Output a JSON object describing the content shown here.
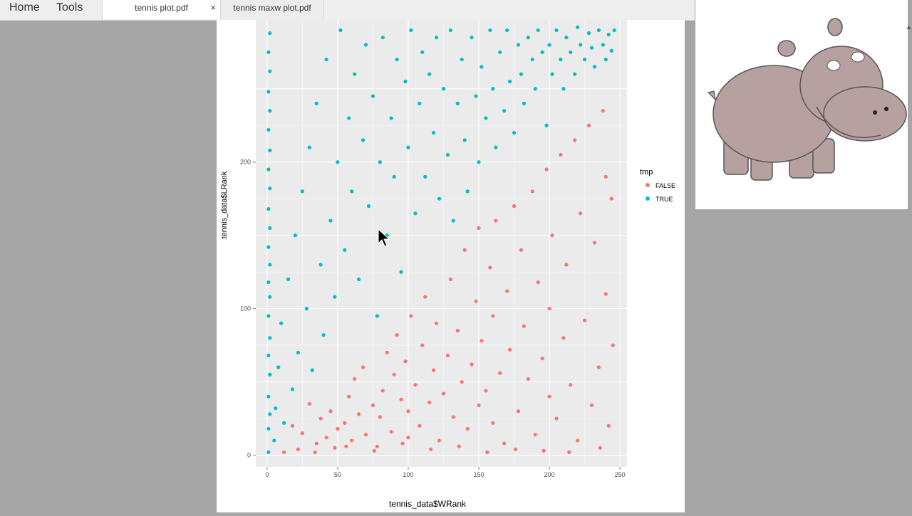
{
  "menu": {
    "home": "Home",
    "tools": "Tools"
  },
  "tabs": [
    {
      "label": "tennis plot.pdf",
      "active": true,
      "close": "×"
    },
    {
      "label": "tennis maxw plot.pdf",
      "active": false
    }
  ],
  "icons": [
    "close-icon",
    "mouse-cursor-icon",
    "hippo-illustration",
    "scroll-up-arrow-icon"
  ],
  "colors": {
    "false": "#F8766D",
    "true": "#00BFC4",
    "panel": "#EBEBEB"
  },
  "chart_data": {
    "type": "scatter",
    "xlabel": "tennis_data$WRank",
    "ylabel": "tennis_data$LRank",
    "xlim": [
      -8,
      255
    ],
    "ylim": [
      -8,
      297
    ],
    "xticks": [
      "0",
      "50",
      "100",
      "150",
      "200",
      "250"
    ],
    "yticks": [
      "0",
      "100",
      "200"
    ],
    "grid": true,
    "legend": {
      "title": "tmp",
      "position": "right",
      "entries": [
        "FALSE",
        "TRUE"
      ]
    },
    "series": [
      {
        "name": "FALSE",
        "color": "#F8766D",
        "points": [
          [
            12,
            2
          ],
          [
            18,
            20
          ],
          [
            22,
            4
          ],
          [
            25,
            15
          ],
          [
            30,
            35
          ],
          [
            35,
            8
          ],
          [
            38,
            25
          ],
          [
            42,
            12
          ],
          [
            45,
            30
          ],
          [
            48,
            5
          ],
          [
            50,
            18
          ],
          [
            55,
            22
          ],
          [
            58,
            40
          ],
          [
            60,
            10
          ],
          [
            62,
            52
          ],
          [
            65,
            28
          ],
          [
            68,
            60
          ],
          [
            70,
            14
          ],
          [
            75,
            34
          ],
          [
            78,
            6
          ],
          [
            80,
            26
          ],
          [
            82,
            44
          ],
          [
            85,
            70
          ],
          [
            88,
            16
          ],
          [
            90,
            55
          ],
          [
            92,
            82
          ],
          [
            95,
            38
          ],
          [
            98,
            64
          ],
          [
            100,
            12
          ],
          [
            100,
            30
          ],
          [
            102,
            95
          ],
          [
            105,
            48
          ],
          [
            108,
            20
          ],
          [
            110,
            75
          ],
          [
            112,
            108
          ],
          [
            115,
            36
          ],
          [
            118,
            58
          ],
          [
            120,
            90
          ],
          [
            122,
            10
          ],
          [
            125,
            42
          ],
          [
            128,
            68
          ],
          [
            130,
            120
          ],
          [
            132,
            26
          ],
          [
            135,
            85
          ],
          [
            138,
            50
          ],
          [
            140,
            140
          ],
          [
            142,
            18
          ],
          [
            145,
            62
          ],
          [
            148,
            105
          ],
          [
            150,
            34
          ],
          [
            150,
            155
          ],
          [
            152,
            78
          ],
          [
            155,
            44
          ],
          [
            158,
            128
          ],
          [
            160,
            22
          ],
          [
            160,
            95
          ],
          [
            162,
            160
          ],
          [
            165,
            56
          ],
          [
            168,
            8
          ],
          [
            170,
            112
          ],
          [
            172,
            72
          ],
          [
            175,
            170
          ],
          [
            178,
            30
          ],
          [
            180,
            140
          ],
          [
            182,
            88
          ],
          [
            185,
            52
          ],
          [
            188,
            180
          ],
          [
            190,
            14
          ],
          [
            192,
            118
          ],
          [
            195,
            66
          ],
          [
            198,
            195
          ],
          [
            200,
            40
          ],
          [
            200,
            100
          ],
          [
            202,
            150
          ],
          [
            205,
            25
          ],
          [
            208,
            205
          ],
          [
            210,
            80
          ],
          [
            212,
            130
          ],
          [
            215,
            48
          ],
          [
            218,
            215
          ],
          [
            220,
            10
          ],
          [
            222,
            165
          ],
          [
            225,
            92
          ],
          [
            228,
            225
          ],
          [
            230,
            34
          ],
          [
            232,
            145
          ],
          [
            235,
            60
          ],
          [
            238,
            235
          ],
          [
            240,
            110
          ],
          [
            242,
            20
          ],
          [
            244,
            175
          ],
          [
            245,
            75
          ],
          [
            240,
            190
          ],
          [
            236,
            5
          ],
          [
            214,
            2
          ],
          [
            196,
            3
          ],
          [
            176,
            4
          ],
          [
            156,
            2
          ],
          [
            136,
            6
          ],
          [
            116,
            4
          ],
          [
            96,
            8
          ],
          [
            76,
            3
          ],
          [
            56,
            6
          ],
          [
            34,
            2
          ]
        ]
      },
      {
        "name": "TRUE",
        "color": "#00BFC4",
        "points": [
          [
            1,
            2
          ],
          [
            1,
            18
          ],
          [
            2,
            28
          ],
          [
            1,
            40
          ],
          [
            2,
            55
          ],
          [
            1,
            68
          ],
          [
            2,
            80
          ],
          [
            1,
            95
          ],
          [
            2,
            108
          ],
          [
            1,
            118
          ],
          [
            2,
            130
          ],
          [
            1,
            142
          ],
          [
            2,
            155
          ],
          [
            1,
            168
          ],
          [
            2,
            182
          ],
          [
            1,
            195
          ],
          [
            2,
            208
          ],
          [
            1,
            222
          ],
          [
            2,
            235
          ],
          [
            1,
            248
          ],
          [
            2,
            262
          ],
          [
            1,
            275
          ],
          [
            2,
            288
          ],
          [
            5,
            10
          ],
          [
            6,
            32
          ],
          [
            8,
            60
          ],
          [
            10,
            90
          ],
          [
            12,
            22
          ],
          [
            15,
            120
          ],
          [
            18,
            45
          ],
          [
            20,
            150
          ],
          [
            22,
            70
          ],
          [
            25,
            180
          ],
          [
            28,
            100
          ],
          [
            30,
            210
          ],
          [
            32,
            58
          ],
          [
            35,
            240
          ],
          [
            38,
            130
          ],
          [
            40,
            82
          ],
          [
            42,
            270
          ],
          [
            45,
            160
          ],
          [
            48,
            108
          ],
          [
            50,
            200
          ],
          [
            52,
            290
          ],
          [
            55,
            140
          ],
          [
            58,
            230
          ],
          [
            60,
            180
          ],
          [
            62,
            260
          ],
          [
            65,
            120
          ],
          [
            68,
            215
          ],
          [
            70,
            280
          ],
          [
            72,
            170
          ],
          [
            75,
            245
          ],
          [
            78,
            95
          ],
          [
            80,
            200
          ],
          [
            82,
            285
          ],
          [
            85,
            150
          ],
          [
            88,
            230
          ],
          [
            90,
            190
          ],
          [
            92,
            270
          ],
          [
            95,
            125
          ],
          [
            98,
            255
          ],
          [
            100,
            210
          ],
          [
            102,
            290
          ],
          [
            105,
            165
          ],
          [
            108,
            240
          ],
          [
            110,
            275
          ],
          [
            112,
            190
          ],
          [
            115,
            260
          ],
          [
            118,
            220
          ],
          [
            120,
            285
          ],
          [
            122,
            175
          ],
          [
            125,
            250
          ],
          [
            128,
            205
          ],
          [
            130,
            290
          ],
          [
            132,
            160
          ],
          [
            135,
            240
          ],
          [
            138,
            270
          ],
          [
            140,
            215
          ],
          [
            142,
            180
          ],
          [
            145,
            285
          ],
          [
            148,
            245
          ],
          [
            150,
            200
          ],
          [
            152,
            265
          ],
          [
            155,
            230
          ],
          [
            158,
            290
          ],
          [
            160,
            250
          ],
          [
            162,
            210
          ],
          [
            165,
            275
          ],
          [
            168,
            235
          ],
          [
            170,
            290
          ],
          [
            172,
            255
          ],
          [
            175,
            220
          ],
          [
            178,
            280
          ],
          [
            180,
            260
          ],
          [
            182,
            240
          ],
          [
            185,
            285
          ],
          [
            188,
            270
          ],
          [
            190,
            250
          ],
          [
            192,
            290
          ],
          [
            195,
            275
          ],
          [
            198,
            225
          ],
          [
            200,
            280
          ],
          [
            202,
            260
          ],
          [
            205,
            290
          ],
          [
            208,
            270
          ],
          [
            210,
            250
          ],
          [
            212,
            285
          ],
          [
            215,
            275
          ],
          [
            218,
            260
          ],
          [
            220,
            292
          ],
          [
            222,
            280
          ],
          [
            225,
            270
          ],
          [
            228,
            288
          ],
          [
            230,
            278
          ],
          [
            232,
            265
          ],
          [
            235,
            290
          ],
          [
            238,
            280
          ],
          [
            240,
            270
          ],
          [
            242,
            287
          ],
          [
            244,
            276
          ],
          [
            246,
            290
          ]
        ]
      }
    ]
  }
}
